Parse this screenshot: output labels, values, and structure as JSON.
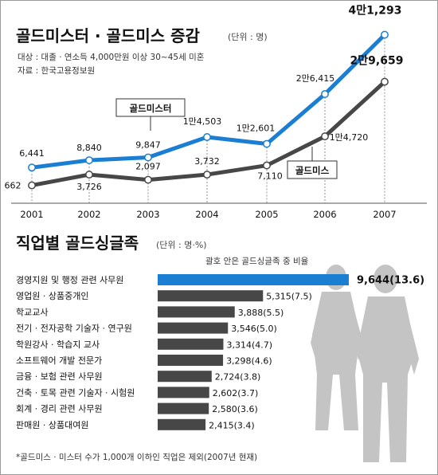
{
  "header": {
    "title": "골드미스터 · 골드미스 증감",
    "unit": "(단위 : 명)",
    "target": "대상 : 대졸 · 연소득 4,000만원 이상 30~45세 미혼",
    "source": "자료 : 한국고용정보원"
  },
  "colors": {
    "mister": "#1a7ed3",
    "miss": "#474747",
    "bar_highlight": "#1a7ed3",
    "bar": "#474747",
    "silhouette": "#c4c4c4"
  },
  "chart_data": [
    {
      "type": "line",
      "title": "골드미스터 · 골드미스 증감",
      "unit": "(단위 : 명)",
      "categories": [
        "2001",
        "2002",
        "2003",
        "2004",
        "2005",
        "2006",
        "2007"
      ],
      "series": [
        {
          "name": "골드미스터",
          "values": [
            6441,
            8840,
            9847,
            14503,
            12601,
            26415,
            41293
          ],
          "labels": [
            "6,441",
            "8,840",
            "9,847",
            "1만4,503",
            "1만2,601",
            "2만6,415",
            "4만1,293"
          ]
        },
        {
          "name": "골드미스",
          "values": [
            662,
            3726,
            2097,
            3732,
            7110,
            14720,
            29659
          ],
          "labels": [
            "662",
            "3,726",
            "2,097",
            "3,732",
            "7,110",
            "1만4,720",
            "2만9,659"
          ]
        }
      ],
      "ylim": [
        0,
        42000
      ],
      "legend": "callouts"
    },
    {
      "type": "bar",
      "orientation": "horizontal",
      "title": "직업별 골드싱글족",
      "unit": "(단위 : 명·%)",
      "note": "괄호 안은 골드싱글족 중 비율",
      "categories": [
        "경영지원 및 행정 관련 사무원",
        "영업원 · 상품중개인",
        "학교교사",
        "전기 · 전자공학 기술자 · 연구원",
        "학원강사 · 학습지 교사",
        "소프트웨어 개발 전문가",
        "금융 · 보험 관련 사무원",
        "건축 · 토목 관련 기술자 · 시험원",
        "회계 · 경리 관련 사무원",
        "판매원 · 상품대여원"
      ],
      "values": [
        9644,
        5315,
        3888,
        3546,
        3314,
        3298,
        2724,
        2602,
        2580,
        2415
      ],
      "labels": [
        "9,644(13.6)",
        "5,315(7.5)",
        "3,888(5.5)",
        "3,546(5.0)",
        "3,314(4.7)",
        "3,298(4.6)",
        "2,724(3.8)",
        "2,602(3.7)",
        "2,580(3.6)",
        "2,415(3.4)"
      ],
      "footnote": "*골드미스 · 미스터 수가 1,000개 이하인 직업은 제외(2007년 현재)"
    }
  ]
}
